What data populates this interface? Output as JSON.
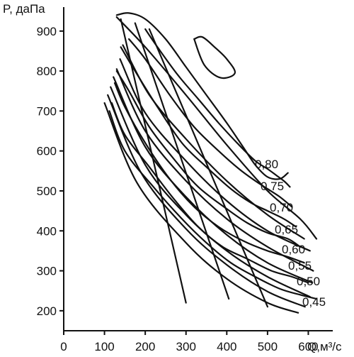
{
  "chart_data": {
    "type": "line",
    "xlabel": "Q,м³/с",
    "ylabel": "P, даПа",
    "xlim": [
      0,
      660
    ],
    "ylim": [
      150,
      960
    ],
    "x_ticks": [
      "0",
      "100",
      "200",
      "300",
      "400",
      "500",
      "600"
    ],
    "y_ticks": [
      "200",
      "300",
      "400",
      "500",
      "600",
      "700",
      "800",
      "900"
    ],
    "grid": false,
    "efficiency_label_values": [
      "0,80",
      "0,75",
      "0,70",
      "0,65",
      "0,60",
      "0,55",
      "0,50",
      "0,45"
    ],
    "speed_curves": [
      {
        "points": [
          [
            100,
            720
          ],
          [
            180,
            520
          ],
          [
            300,
            370
          ],
          [
            400,
            280
          ],
          [
            500,
            220
          ],
          [
            575,
            195
          ]
        ]
      },
      {
        "points": [
          [
            108,
            740
          ],
          [
            190,
            545
          ],
          [
            300,
            405
          ],
          [
            400,
            315
          ],
          [
            500,
            248
          ],
          [
            592,
            210
          ]
        ]
      },
      {
        "points": [
          [
            115,
            760
          ],
          [
            200,
            565
          ],
          [
            300,
            440
          ],
          [
            400,
            350
          ],
          [
            500,
            285
          ],
          [
            604,
            235
          ]
        ]
      },
      {
        "points": [
          [
            122,
            785
          ],
          [
            200,
            610
          ],
          [
            300,
            485
          ],
          [
            400,
            390
          ],
          [
            500,
            320
          ],
          [
            610,
            270
          ]
        ]
      },
      {
        "points": [
          [
            130,
            805
          ],
          [
            200,
            650
          ],
          [
            300,
            525
          ],
          [
            400,
            430
          ],
          [
            500,
            360
          ],
          [
            612,
            300
          ]
        ]
      },
      {
        "points": [
          [
            138,
            830
          ],
          [
            200,
            695
          ],
          [
            300,
            575
          ],
          [
            400,
            475
          ],
          [
            500,
            400
          ],
          [
            604,
            350
          ]
        ]
      },
      {
        "points": [
          [
            145,
            865
          ],
          [
            210,
            740
          ],
          [
            300,
            630
          ],
          [
            400,
            525
          ],
          [
            500,
            440
          ],
          [
            590,
            380
          ]
        ]
      },
      {
        "points": [
          [
            130,
            935
          ],
          [
            200,
            860
          ],
          [
            300,
            740
          ],
          [
            400,
            615
          ],
          [
            500,
            500
          ],
          [
            580,
            430
          ],
          [
            620,
            380
          ]
        ]
      }
    ],
    "efficiency_curves": [
      {
        "label": "0,80",
        "points": [
          [
            320,
            880
          ],
          [
            345,
            815
          ],
          [
            385,
            783
          ],
          [
            420,
            795
          ],
          [
            400,
            830
          ],
          [
            370,
            860
          ],
          [
            340,
            885
          ],
          [
            320,
            880
          ]
        ]
      },
      {
        "points": [
          [
            130,
            940
          ],
          [
            160,
            945
          ],
          [
            200,
            930
          ],
          [
            250,
            880
          ],
          [
            300,
            810
          ],
          [
            350,
            740
          ],
          [
            400,
            670
          ],
          [
            440,
            610
          ],
          [
            470,
            565
          ],
          [
            500,
            535
          ],
          [
            530,
            530
          ],
          [
            550,
            545
          ]
        ]
      },
      {
        "points": [
          [
            200,
            905
          ],
          [
            230,
            860
          ],
          [
            280,
            790
          ],
          [
            330,
            730
          ],
          [
            380,
            670
          ],
          [
            430,
            615
          ],
          [
            470,
            575
          ],
          [
            500,
            555
          ],
          [
            520,
            540
          ],
          [
            540,
            525
          ],
          [
            555,
            510
          ]
        ]
      },
      {
        "points": [
          [
            160,
            880
          ],
          [
            200,
            830
          ],
          [
            260,
            740
          ],
          [
            320,
            660
          ],
          [
            380,
            600
          ],
          [
            430,
            555
          ],
          [
            470,
            525
          ],
          [
            500,
            505
          ],
          [
            530,
            485
          ],
          [
            560,
            460
          ]
        ]
      },
      {
        "points": [
          [
            140,
            860
          ],
          [
            175,
            800
          ],
          [
            230,
            710
          ],
          [
            290,
            620
          ],
          [
            350,
            560
          ],
          [
            410,
            505
          ],
          [
            460,
            470
          ],
          [
            500,
            450
          ],
          [
            540,
            430
          ],
          [
            570,
            410
          ]
        ]
      },
      {
        "points": [
          [
            130,
            800
          ],
          [
            160,
            750
          ],
          [
            210,
            660
          ],
          [
            270,
            580
          ],
          [
            330,
            510
          ],
          [
            400,
            455
          ],
          [
            450,
            420
          ],
          [
            500,
            395
          ],
          [
            550,
            380
          ],
          [
            580,
            360
          ]
        ]
      },
      {
        "points": [
          [
            125,
            770
          ],
          [
            150,
            710
          ],
          [
            200,
            620
          ],
          [
            260,
            530
          ],
          [
            320,
            460
          ],
          [
            380,
            410
          ],
          [
            440,
            375
          ],
          [
            500,
            350
          ],
          [
            550,
            335
          ],
          [
            590,
            320
          ]
        ]
      },
      {
        "points": [
          [
            118,
            720
          ],
          [
            150,
            640
          ],
          [
            210,
            560
          ],
          [
            270,
            480
          ],
          [
            330,
            410
          ],
          [
            390,
            360
          ],
          [
            450,
            330
          ],
          [
            510,
            300
          ],
          [
            560,
            285
          ],
          [
            600,
            270
          ]
        ]
      },
      {
        "points": [
          [
            112,
            700
          ],
          [
            150,
            600
          ],
          [
            220,
            510
          ],
          [
            290,
            430
          ],
          [
            350,
            370
          ],
          [
            410,
            320
          ],
          [
            470,
            285
          ],
          [
            530,
            255
          ],
          [
            580,
            240
          ],
          [
            620,
            230
          ]
        ]
      }
    ],
    "ray_lines": [
      {
        "points": [
          [
            140,
            930
          ],
          [
            300,
            220
          ]
        ]
      },
      {
        "points": [
          [
            175,
            920
          ],
          [
            405,
            230
          ]
        ]
      },
      {
        "points": [
          [
            210,
            905
          ],
          [
            500,
            210
          ]
        ]
      }
    ]
  }
}
